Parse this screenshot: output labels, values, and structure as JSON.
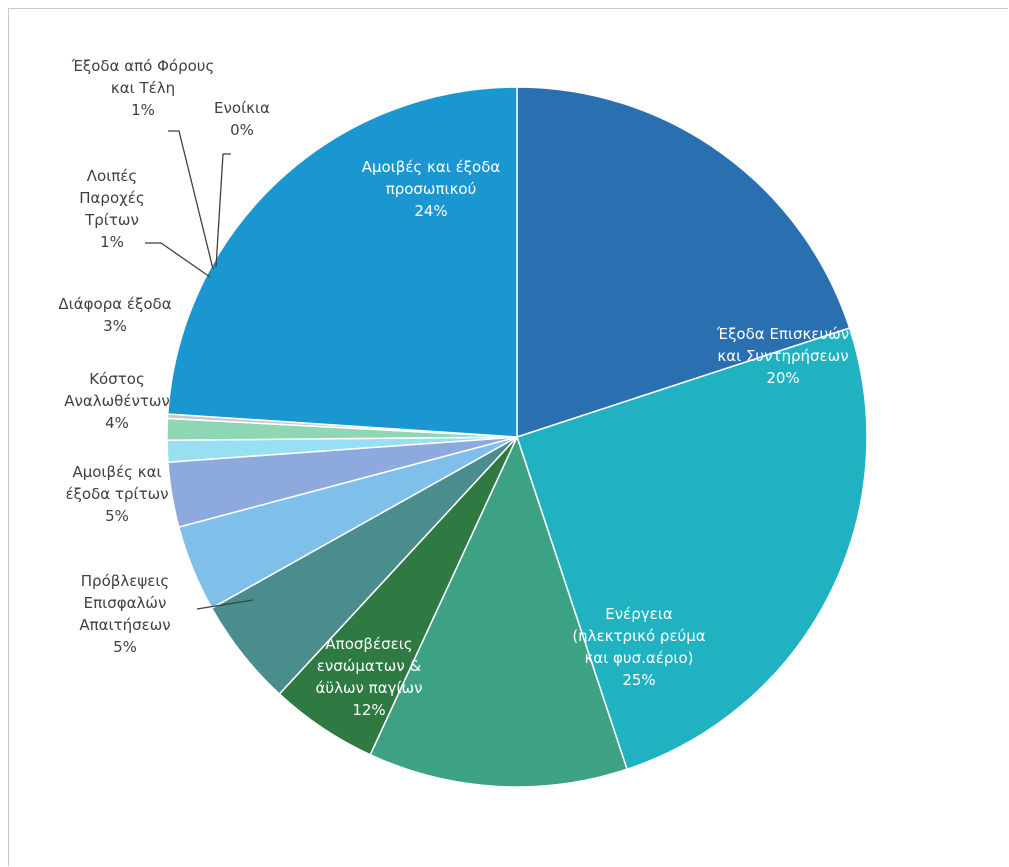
{
  "chart_data": {
    "type": "pie",
    "start_angle_deg": 0,
    "direction": "clockwise",
    "slices": [
      {
        "label_lines": [
          "Έξοδα Επισκευών",
          "και Συντηρήσεων"
        ],
        "value": 20,
        "value_text": "20%",
        "color": "#2a6fb0",
        "label_pos": "inside"
      },
      {
        "label_lines": [
          "Ενέργεια",
          "(ηλεκτρικό ρεύμα",
          "και φυσ.αέριο)"
        ],
        "value": 25,
        "value_text": "25%",
        "color": "#21b2c2",
        "label_pos": "inside"
      },
      {
        "label_lines": [
          "Αποσβέσεις",
          "ενσώματων &",
          "άϋλων παγίων"
        ],
        "value": 12,
        "value_text": "12%",
        "color": "#3da283",
        "label_pos": "inside"
      },
      {
        "label_lines": [
          "Πρόβλεψεις",
          "Επισφαλών",
          "Απαιτήσεων"
        ],
        "value": 5,
        "value_text": "5%",
        "color": "#2f7a43",
        "label_pos": "outside"
      },
      {
        "label_lines": [
          "Αμοιβές και",
          "έξοδα τρίτων"
        ],
        "value": 5,
        "value_text": "5%",
        "color": "#4a8d8c",
        "label_pos": "outside"
      },
      {
        "label_lines": [
          "Κόστος",
          "Αναλωθέντων"
        ],
        "value": 4,
        "value_text": "4%",
        "color": "#7fc0ea",
        "label_pos": "outside"
      },
      {
        "label_lines": [
          "Διάφορα έξοδα"
        ],
        "value": 3,
        "value_text": "3%",
        "color": "#8ea9dd",
        "label_pos": "outside"
      },
      {
        "label_lines": [
          "Λοιπές",
          "Παροχές",
          "Τρίτων"
        ],
        "value": 1,
        "value_text": "1%",
        "color": "#97dff1",
        "label_pos": "outside"
      },
      {
        "label_lines": [
          "Έξοδα από Φόρους",
          "και Τέλη"
        ],
        "value": 1,
        "value_text": "1%",
        "color": "#8fd7b4",
        "label_pos": "outside"
      },
      {
        "label_lines": [
          "Ενοίκια"
        ],
        "value": 0.2,
        "value_text": "0%",
        "color": "#c9c9c9",
        "label_pos": "outside"
      },
      {
        "label_lines": [
          "Αμοιβές και έξοδα",
          "προσωπικού"
        ],
        "value": 24,
        "value_text": "24%",
        "color": "#1a97d1",
        "label_pos": "inside"
      }
    ]
  }
}
